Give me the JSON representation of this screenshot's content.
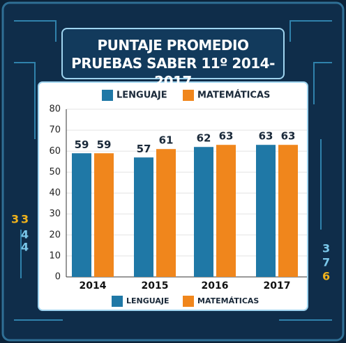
{
  "chart_data": {
    "type": "bar",
    "title": "PUNTAJE PROMEDIO PRUEBAS SABER 11º 2014-2017",
    "categories": [
      "2014",
      "2015",
      "2016",
      "2017"
    ],
    "series": [
      {
        "name": "LENGUAJE",
        "color": "#1f78a6",
        "values": [
          59,
          57,
          62,
          63
        ]
      },
      {
        "name": "MATEMÁTICAS",
        "color": "#f0861c",
        "values": [
          59,
          61,
          63,
          63
        ]
      }
    ],
    "ylim": [
      0,
      80
    ],
    "yticks": [
      0,
      10,
      20,
      30,
      40,
      50,
      60,
      70,
      80
    ],
    "grid": true
  }
}
